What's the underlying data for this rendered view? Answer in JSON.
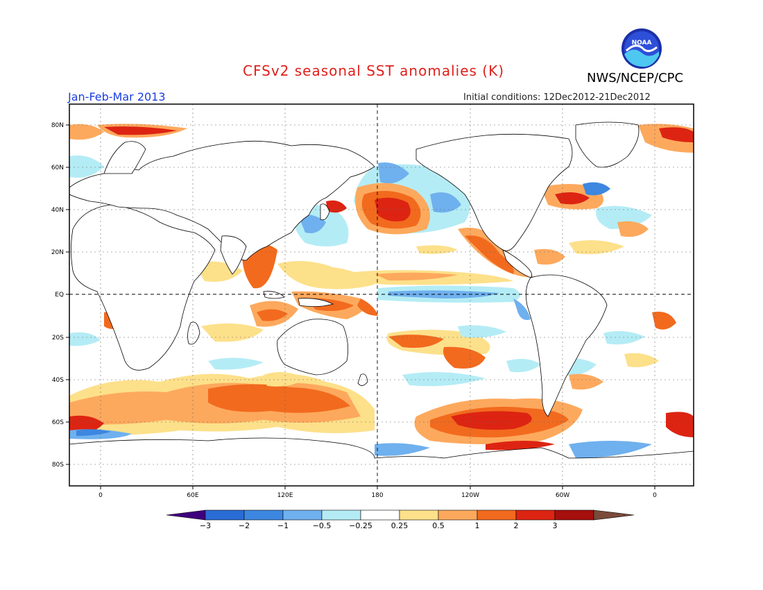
{
  "header": {
    "title": "CFSv2 seasonal SST anomalies (K)",
    "season": "Jan-Feb-Mar 2013",
    "initial_conditions": "Initial conditions: 12Dec2012-21Dec2012",
    "agency": "NWS/NCEP/CPC",
    "logo_text": "NOAA"
  },
  "axes": {
    "lat_labels": [
      "80N",
      "60N",
      "40N",
      "20N",
      "EQ",
      "20S",
      "40S",
      "60S",
      "80S"
    ],
    "lon_labels": [
      "0",
      "60E",
      "120E",
      "180",
      "120W",
      "60W",
      "0"
    ]
  },
  "colorbar": {
    "labels": [
      "-3",
      "-2",
      "-1",
      "-0.5",
      "-0.25",
      "0.25",
      "0.5",
      "1",
      "2",
      "3"
    ],
    "colors": [
      "#3f007d",
      "#2a6cd6",
      "#3d87e0",
      "#6fb0ee",
      "#b4ecf5",
      "#ffffff",
      "#fde08a",
      "#fda95d",
      "#f26a1e",
      "#dd2412",
      "#a50f0e",
      "#7b4a3a"
    ]
  },
  "anomaly_colors": {
    "neg_3": "#1f4fb8",
    "neg_2": "#3d87e0",
    "neg_1": "#6fb0ee",
    "neg_05": "#b4ecf5",
    "pos_05": "#fde08a",
    "pos_1": "#fda95d",
    "pos_2": "#f26a1e",
    "pos_3": "#dd2412",
    "pos_4": "#a50f0e"
  }
}
